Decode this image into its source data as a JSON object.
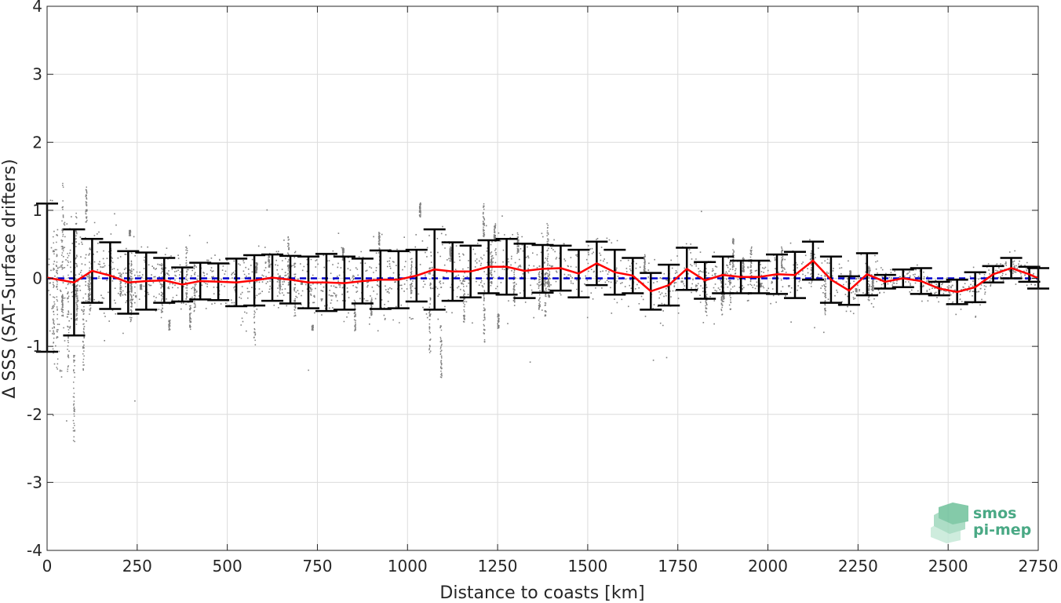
{
  "chart_data": {
    "type": "scatter",
    "title": "",
    "xlabel": "Distance to coasts [km]",
    "ylabel": "Δ SSS (SAT-Surface drifters)",
    "xlim": [
      0,
      2750
    ],
    "ylim": [
      -4,
      4
    ],
    "grid": true,
    "xticks": [
      0,
      250,
      500,
      750,
      1000,
      1250,
      1500,
      1750,
      2000,
      2250,
      2500,
      2750
    ],
    "yticks": [
      -4,
      -3,
      -2,
      -1,
      0,
      1,
      2,
      3,
      4
    ],
    "xtick_labels": [
      "0",
      "250",
      "500",
      "750",
      "1000",
      "1250",
      "1500",
      "1750",
      "2000",
      "2250",
      "2500",
      "2750"
    ],
    "ytick_labels": [
      "-4",
      "-3",
      "-2",
      "-1",
      "0",
      "1",
      "2",
      "3",
      "4"
    ],
    "reference_line": {
      "y": 0,
      "style": "dashed",
      "color": "#0000cc"
    },
    "bins": [
      {
        "x": 0,
        "mean": 0.01,
        "std": 1.09
      },
      {
        "x": 75,
        "mean": -0.06,
        "std": 0.78
      },
      {
        "x": 125,
        "mean": 0.11,
        "std": 0.47
      },
      {
        "x": 175,
        "mean": 0.04,
        "std": 0.49
      },
      {
        "x": 225,
        "mean": -0.06,
        "std": 0.46
      },
      {
        "x": 275,
        "mean": -0.04,
        "std": 0.42
      },
      {
        "x": 325,
        "mean": -0.03,
        "std": 0.33
      },
      {
        "x": 375,
        "mean": -0.09,
        "std": 0.25
      },
      {
        "x": 425,
        "mean": -0.04,
        "std": 0.27
      },
      {
        "x": 475,
        "mean": -0.05,
        "std": 0.27
      },
      {
        "x": 525,
        "mean": -0.06,
        "std": 0.35
      },
      {
        "x": 575,
        "mean": -0.03,
        "std": 0.37
      },
      {
        "x": 625,
        "mean": 0.01,
        "std": 0.34
      },
      {
        "x": 675,
        "mean": -0.02,
        "std": 0.35
      },
      {
        "x": 725,
        "mean": -0.06,
        "std": 0.38
      },
      {
        "x": 775,
        "mean": -0.06,
        "std": 0.42
      },
      {
        "x": 825,
        "mean": -0.07,
        "std": 0.39
      },
      {
        "x": 875,
        "mean": -0.04,
        "std": 0.33
      },
      {
        "x": 925,
        "mean": -0.02,
        "std": 0.43
      },
      {
        "x": 975,
        "mean": -0.02,
        "std": 0.42
      },
      {
        "x": 1025,
        "mean": 0.04,
        "std": 0.38
      },
      {
        "x": 1075,
        "mean": 0.13,
        "std": 0.59
      },
      {
        "x": 1125,
        "mean": 0.1,
        "std": 0.43
      },
      {
        "x": 1175,
        "mean": 0.1,
        "std": 0.38
      },
      {
        "x": 1225,
        "mean": 0.17,
        "std": 0.39
      },
      {
        "x": 1275,
        "mean": 0.17,
        "std": 0.41
      },
      {
        "x": 1325,
        "mean": 0.11,
        "std": 0.4
      },
      {
        "x": 1375,
        "mean": 0.14,
        "std": 0.35
      },
      {
        "x": 1425,
        "mean": 0.15,
        "std": 0.33
      },
      {
        "x": 1475,
        "mean": 0.07,
        "std": 0.35
      },
      {
        "x": 1525,
        "mean": 0.22,
        "std": 0.32
      },
      {
        "x": 1575,
        "mean": 0.09,
        "std": 0.33
      },
      {
        "x": 1625,
        "mean": 0.04,
        "std": 0.26
      },
      {
        "x": 1675,
        "mean": -0.19,
        "std": 0.27
      },
      {
        "x": 1725,
        "mean": -0.1,
        "std": 0.3
      },
      {
        "x": 1775,
        "mean": 0.14,
        "std": 0.31
      },
      {
        "x": 1825,
        "mean": -0.03,
        "std": 0.27
      },
      {
        "x": 1875,
        "mean": 0.05,
        "std": 0.27
      },
      {
        "x": 1925,
        "mean": 0.02,
        "std": 0.24
      },
      {
        "x": 1975,
        "mean": 0.02,
        "std": 0.24
      },
      {
        "x": 2025,
        "mean": 0.06,
        "std": 0.29
      },
      {
        "x": 2075,
        "mean": 0.05,
        "std": 0.34
      },
      {
        "x": 2125,
        "mean": 0.26,
        "std": 0.28
      },
      {
        "x": 2175,
        "mean": -0.02,
        "std": 0.34
      },
      {
        "x": 2225,
        "mean": -0.18,
        "std": 0.21
      },
      {
        "x": 2275,
        "mean": 0.06,
        "std": 0.31
      },
      {
        "x": 2325,
        "mean": -0.05,
        "std": 0.1
      },
      {
        "x": 2375,
        "mean": 0.0,
        "std": 0.13
      },
      {
        "x": 2425,
        "mean": -0.04,
        "std": 0.19
      },
      {
        "x": 2475,
        "mean": -0.15,
        "std": 0.1
      },
      {
        "x": 2525,
        "mean": -0.2,
        "std": 0.18
      },
      {
        "x": 2575,
        "mean": -0.13,
        "std": 0.22
      },
      {
        "x": 2625,
        "mean": 0.06,
        "std": 0.12
      },
      {
        "x": 2675,
        "mean": 0.15,
        "std": 0.15
      },
      {
        "x": 2725,
        "mean": 0.06,
        "std": 0.11
      },
      {
        "x": 2750,
        "mean": 0.0,
        "std": 0.15
      }
    ],
    "scatter_series": {
      "color": "#808080",
      "description_points": "dense cloud of matchup differences, spread roughly ±1 around zero, wider near coast"
    },
    "logo": {
      "line1": "smos",
      "line2": "pi-mep"
    }
  }
}
